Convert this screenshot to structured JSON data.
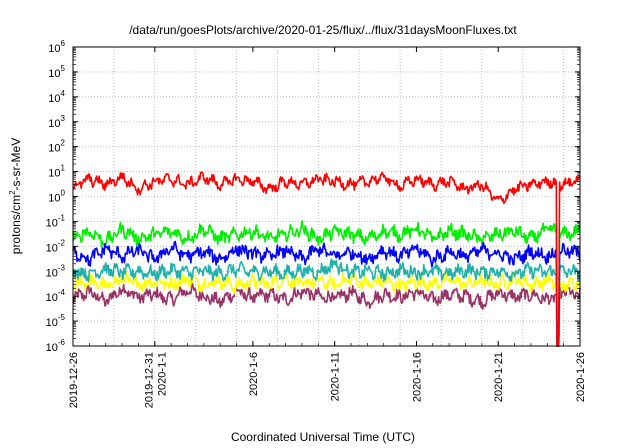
{
  "chart_data": {
    "type": "line",
    "title": "/data/run/goesPlots/archive/2020-01-25/flux/../flux/31daysMoonFluxes.txt",
    "xlabel": "Coordinated Universal Time (UTC)",
    "ylabel": "protons/cm²-s-sr-MeV",
    "ylabel_parts": {
      "base": "protons/cm",
      "sup": "2",
      "rest": "-s-sr-MeV"
    },
    "y_scale": "log",
    "ylim": [
      1e-06,
      1000000.0
    ],
    "y_ticks": [
      {
        "base": "10",
        "exp": "-6"
      },
      {
        "base": "10",
        "exp": "-5"
      },
      {
        "base": "10",
        "exp": "-4"
      },
      {
        "base": "10",
        "exp": "-3"
      },
      {
        "base": "10",
        "exp": "-2"
      },
      {
        "base": "10",
        "exp": "-1"
      },
      {
        "base": "10",
        "exp": "0"
      },
      {
        "base": "10",
        "exp": "1"
      },
      {
        "base": "10",
        "exp": "2"
      },
      {
        "base": "10",
        "exp": "3"
      },
      {
        "base": "10",
        "exp": "4"
      },
      {
        "base": "10",
        "exp": "5"
      },
      {
        "base": "10",
        "exp": "6"
      }
    ],
    "xlim": [
      "2019-12-26",
      "2020-01-26"
    ],
    "x_ticks": [
      {
        "date": "2019-12-26",
        "lines": [
          "2019-12-26"
        ]
      },
      {
        "date": "2019-12-31",
        "lines": [
          "2019-12-31",
          "2020-1-1"
        ]
      },
      {
        "date": "2020-01-06",
        "lines": [
          "2020-1-6"
        ]
      },
      {
        "date": "2020-01-11",
        "lines": [
          "2020-1-11"
        ]
      },
      {
        "date": "2020-01-16",
        "lines": [
          "2020-1-16"
        ]
      },
      {
        "date": "2020-01-21",
        "lines": [
          "2020-1-21"
        ]
      },
      {
        "date": "2020-01-26",
        "lines": [
          "2020-1-26"
        ]
      }
    ],
    "grid": true,
    "legend": "none",
    "dropout": {
      "date": "2020-01-24",
      "note": "all series drop to 1e-6 briefly"
    },
    "series": [
      {
        "color": "#ff0000",
        "x_days": [
          0,
          1,
          2,
          3,
          4,
          5,
          6,
          7,
          8,
          9,
          10,
          11,
          12,
          13,
          14,
          15,
          16,
          17,
          18,
          19,
          20,
          21,
          22,
          23,
          24,
          25,
          26,
          27,
          28,
          29,
          30,
          31
        ],
        "values": [
          2.5,
          5,
          3,
          6,
          2,
          4,
          5,
          3,
          6,
          3,
          5,
          4,
          2,
          4,
          3,
          5,
          4,
          3,
          4,
          6,
          2.5,
          5,
          3,
          4,
          2,
          3,
          0.6,
          2,
          3,
          4,
          3,
          5
        ]
      },
      {
        "color": "#00ee00",
        "x_days": [
          0,
          1,
          2,
          3,
          4,
          5,
          6,
          7,
          8,
          9,
          10,
          11,
          12,
          13,
          14,
          15,
          16,
          17,
          18,
          19,
          20,
          21,
          22,
          23,
          24,
          25,
          26,
          27,
          28,
          29,
          30,
          31
        ],
        "values": [
          0.02,
          0.04,
          0.015,
          0.05,
          0.02,
          0.03,
          0.04,
          0.02,
          0.05,
          0.02,
          0.03,
          0.04,
          0.02,
          0.03,
          0.05,
          0.02,
          0.04,
          0.03,
          0.02,
          0.04,
          0.03,
          0.05,
          0.02,
          0.04,
          0.03,
          0.02,
          0.03,
          0.04,
          0.02,
          0.05,
          0.03,
          0.04
        ]
      },
      {
        "color": "#0000ff",
        "x_days": [
          0,
          1,
          2,
          3,
          4,
          5,
          6,
          7,
          8,
          9,
          10,
          11,
          12,
          13,
          14,
          15,
          16,
          17,
          18,
          19,
          20,
          21,
          22,
          23,
          24,
          25,
          26,
          27,
          28,
          29,
          30,
          31
        ],
        "values": [
          0.006,
          0.003,
          0.008,
          0.004,
          0.007,
          0.003,
          0.009,
          0.004,
          0.006,
          0.003,
          0.008,
          0.005,
          0.004,
          0.007,
          0.003,
          0.008,
          0.004,
          0.006,
          0.003,
          0.007,
          0.004,
          0.008,
          0.003,
          0.006,
          0.004,
          0.007,
          0.005,
          0.003,
          0.006,
          0.004,
          0.007,
          0.005
        ]
      },
      {
        "color": "#20b2aa",
        "x_days": [
          0,
          1,
          2,
          3,
          4,
          5,
          6,
          7,
          8,
          9,
          10,
          11,
          12,
          13,
          14,
          15,
          16,
          17,
          18,
          19,
          20,
          21,
          22,
          23,
          24,
          25,
          26,
          27,
          28,
          29,
          30,
          31
        ],
        "values": [
          0.001,
          0.0008,
          0.0012,
          0.0009,
          0.001,
          0.0008,
          0.0011,
          0.0009,
          0.001,
          0.0008,
          0.0012,
          0.0009,
          0.001,
          0.0008,
          0.0011,
          0.0009,
          0.002,
          0.0009,
          0.001,
          0.0008,
          0.0011,
          0.0009,
          0.001,
          0.0008,
          0.0011,
          0.0009,
          0.001,
          0.0008,
          0.0011,
          0.0009,
          0.001,
          0.0009
        ]
      },
      {
        "color": "#ffff00",
        "x_days": [
          0,
          1,
          2,
          3,
          4,
          5,
          6,
          7,
          8,
          9,
          10,
          11,
          12,
          13,
          14,
          15,
          16,
          17,
          18,
          19,
          20,
          21,
          22,
          23,
          24,
          25,
          26,
          27,
          28,
          29,
          30,
          31
        ],
        "values": [
          0.0003,
          0.0004,
          0.00025,
          0.0005,
          0.0003,
          0.0004,
          0.0003,
          0.0005,
          0.0003,
          0.0004,
          0.00025,
          0.0004,
          0.0003,
          0.0005,
          0.0003,
          0.0004,
          0.0003,
          0.0005,
          0.0003,
          0.0004,
          0.00025,
          0.0004,
          0.0003,
          0.0005,
          0.0003,
          0.0004,
          0.0003,
          0.0005,
          0.0003,
          0.0004,
          0.00025,
          0.0004
        ]
      },
      {
        "color": "#993366",
        "x_days": [
          0,
          1,
          2,
          3,
          4,
          5,
          6,
          7,
          8,
          9,
          10,
          11,
          12,
          13,
          14,
          15,
          16,
          17,
          18,
          19,
          20,
          21,
          22,
          23,
          24,
          25,
          26,
          27,
          28,
          29,
          30,
          31
        ],
        "values": [
          8e-05,
          0.00015,
          6e-05,
          0.0002,
          9e-05,
          0.00012,
          7e-05,
          0.00018,
          0.0001,
          6e-05,
          0.00015,
          9e-05,
          0.00012,
          7e-05,
          0.00016,
          0.0001,
          8e-05,
          0.00014,
          6e-05,
          0.00012,
          9e-05,
          0.00015,
          7e-05,
          0.00012,
          0.0001,
          6e-05,
          0.00014,
          9e-05,
          0.00012,
          7e-05,
          0.00015,
          0.0001
        ]
      }
    ]
  }
}
